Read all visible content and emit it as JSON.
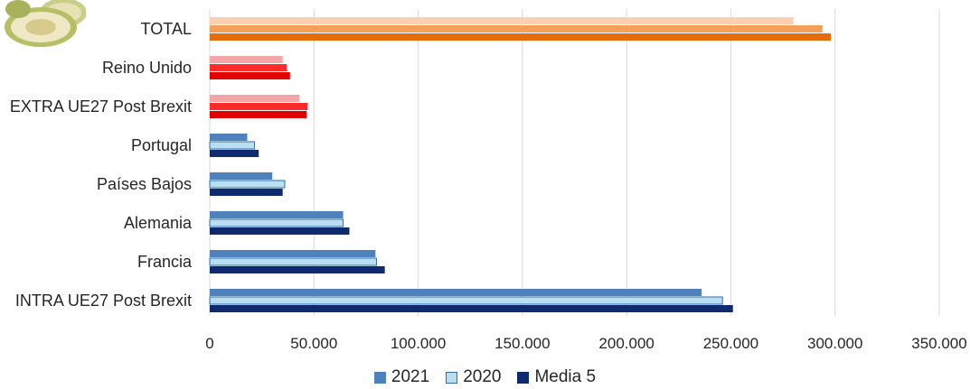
{
  "chart_data": {
    "type": "bar",
    "orientation": "horizontal",
    "categories": [
      "TOTAL",
      "Reino Unido",
      "EXTRA UE27 Post Brexit",
      "Portugal",
      "Países Bajos",
      "Alemania",
      "Francia",
      "INTRA UE27 Post Brexit"
    ],
    "series": [
      {
        "name": "2021",
        "values": [
          280000,
          35000,
          43000,
          18000,
          30000,
          64000,
          79500,
          236000
        ]
      },
      {
        "name": "2020",
        "values": [
          294000,
          37000,
          47000,
          21500,
          36000,
          64000,
          80000,
          246000
        ]
      },
      {
        "name": "Media 5",
        "values": [
          298000,
          38500,
          46500,
          23500,
          35000,
          67000,
          84000,
          251000
        ]
      }
    ],
    "category_colors": {
      "TOTAL": [
        "#FAD0B0",
        "#F5A05A",
        "#E46C0A"
      ],
      "Reino Unido": [
        "#F4A6A6",
        "#FF2A2A",
        "#E00000"
      ],
      "EXTRA UE27 Post Brexit": [
        "#F4A6A6",
        "#FF2A2A",
        "#E00000"
      ],
      "default": [
        "#4F81BD",
        "#B9DDF1",
        "#0F2A6E"
      ]
    },
    "xlim": [
      0,
      350000
    ],
    "xticks": [
      0,
      50000,
      100000,
      150000,
      200000,
      250000,
      300000,
      350000
    ],
    "xtick_labels": [
      "0",
      "50.000",
      "100.000",
      "150.000",
      "200.000",
      "250.000",
      "300.000",
      "350.000"
    ],
    "grid": "vertical",
    "legend_position": "bottom",
    "legend": [
      {
        "label": "2021",
        "color": "#4F81BD",
        "border": "#4F81BD"
      },
      {
        "label": "2020",
        "color": "#B9DDF1",
        "border": "#2E6FA5"
      },
      {
        "label": "Media 5",
        "color": "#0F2A6E",
        "border": "#0F2A6E"
      }
    ]
  },
  "decoration": {
    "image": "melon-photo"
  }
}
